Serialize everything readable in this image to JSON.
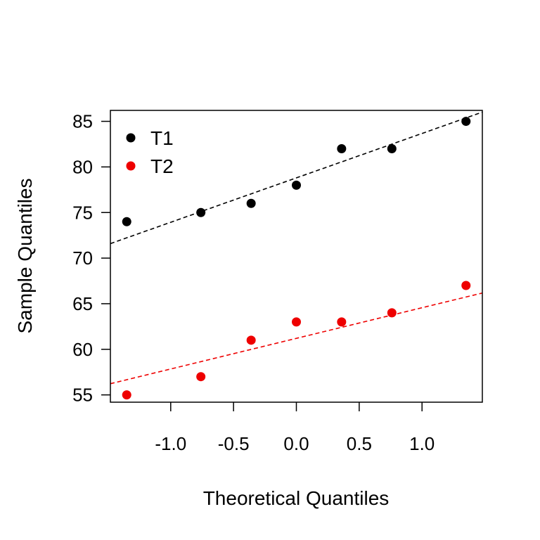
{
  "chart_data": {
    "type": "scatter",
    "title": "",
    "xlabel": "Theoretical Quantiles",
    "ylabel": "Sample Quantiles",
    "xlim": [
      -1.48,
      1.48
    ],
    "ylim": [
      54.2,
      86.2
    ],
    "xticks": [
      -1.0,
      -0.5,
      0.0,
      0.5,
      1.0
    ],
    "xtick_labels": [
      "-1.0",
      "-0.5",
      "0.0",
      "0.5",
      "1.0"
    ],
    "yticks": [
      55,
      60,
      65,
      70,
      75,
      80,
      85
    ],
    "ytick_labels": [
      "55",
      "60",
      "65",
      "70",
      "75",
      "80",
      "85"
    ],
    "grid": false,
    "legend_position": "top-left",
    "series": [
      {
        "name": "T1",
        "color": "#000000",
        "x": [
          -1.35,
          -0.76,
          -0.36,
          0.0,
          0.36,
          0.76,
          1.35
        ],
        "y": [
          74,
          75,
          76,
          78,
          82,
          82,
          85
        ],
        "qq_line": {
          "slope": 4.87,
          "intercept": 78.8
        }
      },
      {
        "name": "T2",
        "color": "#ee0000",
        "x": [
          -1.35,
          -0.76,
          -0.36,
          0.0,
          0.36,
          0.76,
          1.35
        ],
        "y": [
          55,
          57,
          61,
          63,
          63,
          64,
          67
        ],
        "qq_line": {
          "slope": 3.36,
          "intercept": 61.2
        }
      }
    ]
  }
}
